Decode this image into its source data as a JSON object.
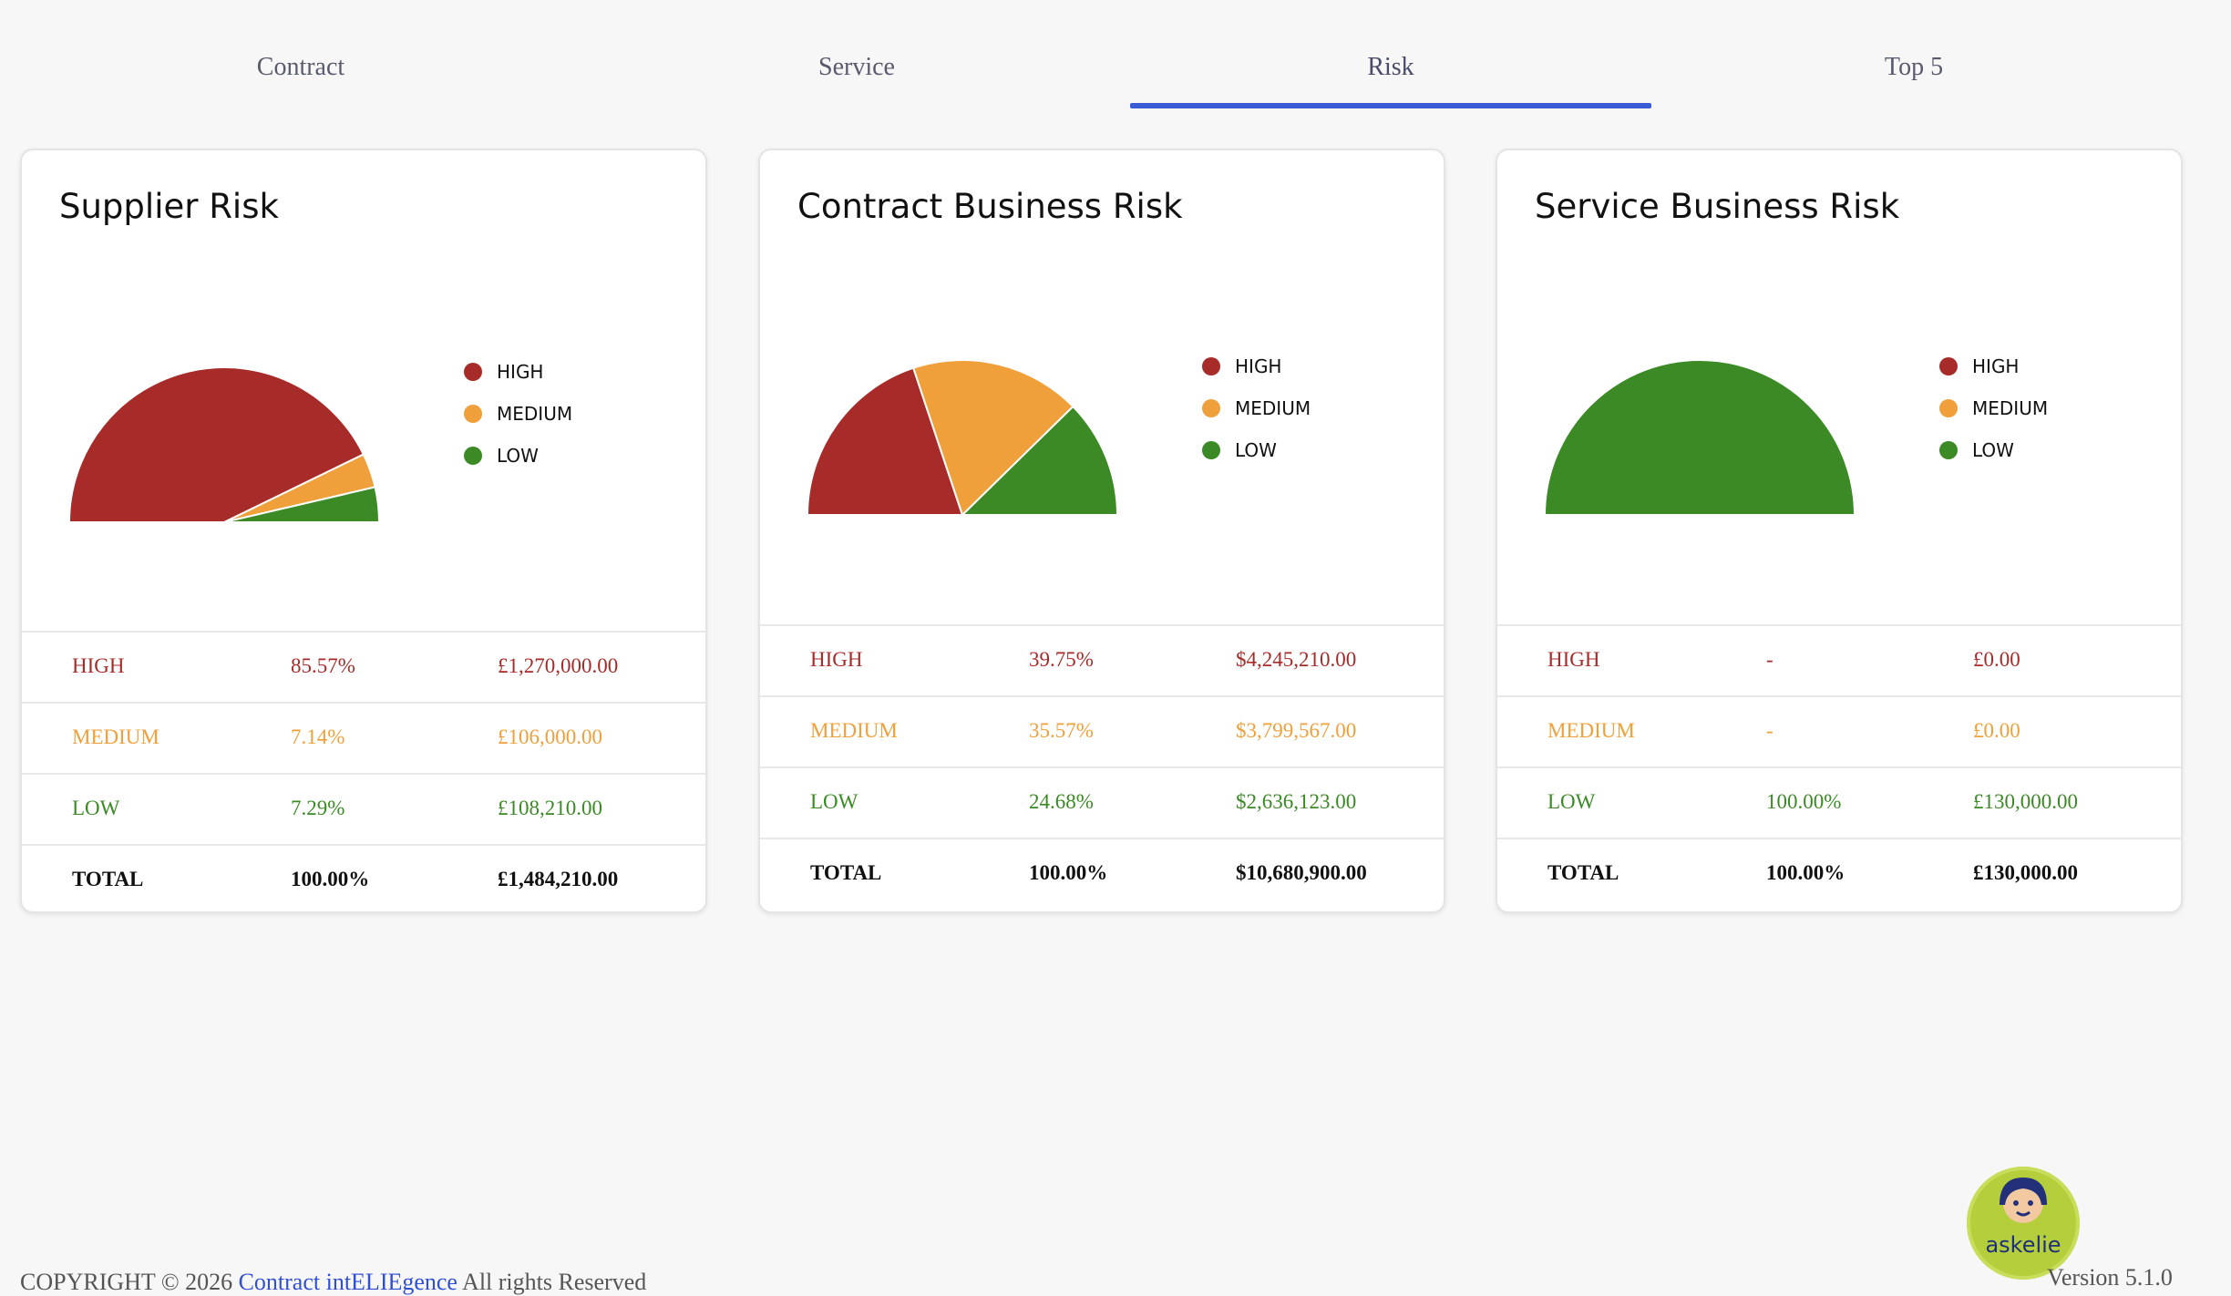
{
  "tabs": [
    {
      "label": "Contract",
      "active": false
    },
    {
      "label": "Service",
      "active": false
    },
    {
      "label": "Risk",
      "active": true
    },
    {
      "label": "Top 5",
      "active": false
    }
  ],
  "colors": {
    "high": "#a72b28",
    "medium": "#f0a03a",
    "low": "#3b8a25",
    "accent": "#3b5bd6"
  },
  "cards": [
    {
      "title": "Supplier Risk",
      "legend": [
        "HIGH",
        "MEDIUM",
        "LOW"
      ],
      "rows": [
        {
          "level": "HIGH",
          "pct": "85.57%",
          "amount": "£1,270,000.00"
        },
        {
          "level": "MEDIUM",
          "pct": "7.14%",
          "amount": "£106,000.00"
        },
        {
          "level": "LOW",
          "pct": "7.29%",
          "amount": "£108,210.00"
        },
        {
          "level": "TOTAL",
          "pct": "100.00%",
          "amount": "£1,484,210.00"
        }
      ]
    },
    {
      "title": "Contract Business Risk",
      "legend": [
        "HIGH",
        "MEDIUM",
        "LOW"
      ],
      "rows": [
        {
          "level": "HIGH",
          "pct": "39.75%",
          "amount": "$4,245,210.00"
        },
        {
          "level": "MEDIUM",
          "pct": "35.57%",
          "amount": "$3,799,567.00"
        },
        {
          "level": "LOW",
          "pct": "24.68%",
          "amount": "$2,636,123.00"
        },
        {
          "level": "TOTAL",
          "pct": "100.00%",
          "amount": "$10,680,900.00"
        }
      ]
    },
    {
      "title": "Service Business Risk",
      "legend": [
        "HIGH",
        "MEDIUM",
        "LOW"
      ],
      "rows": [
        {
          "level": "HIGH",
          "pct": "-",
          "amount": "£0.00"
        },
        {
          "level": "MEDIUM",
          "pct": "-",
          "amount": "£0.00"
        },
        {
          "level": "LOW",
          "pct": "100.00%",
          "amount": "£130,000.00"
        },
        {
          "level": "TOTAL",
          "pct": "100.00%",
          "amount": "£130,000.00"
        }
      ]
    }
  ],
  "chart_data": [
    {
      "type": "pie",
      "variant": "semicircle",
      "categories": [
        "HIGH",
        "MEDIUM",
        "LOW"
      ],
      "values": [
        85.57,
        7.14,
        7.29
      ],
      "legend_position": "right"
    },
    {
      "type": "pie",
      "variant": "semicircle",
      "categories": [
        "HIGH",
        "MEDIUM",
        "LOW"
      ],
      "values": [
        39.75,
        35.57,
        24.68
      ],
      "legend_position": "right"
    },
    {
      "type": "pie",
      "variant": "semicircle",
      "categories": [
        "HIGH",
        "MEDIUM",
        "LOW"
      ],
      "values": [
        0,
        0,
        100
      ],
      "legend_position": "right"
    }
  ],
  "footer": {
    "copyright": "COPYRIGHT © 2026",
    "link": "Contract intELIEgence",
    "rights": " All rights Reserved"
  },
  "assistant": {
    "label": "askelie",
    "icon": "assistant-avatar-icon"
  },
  "version": "Version 5.1.0"
}
